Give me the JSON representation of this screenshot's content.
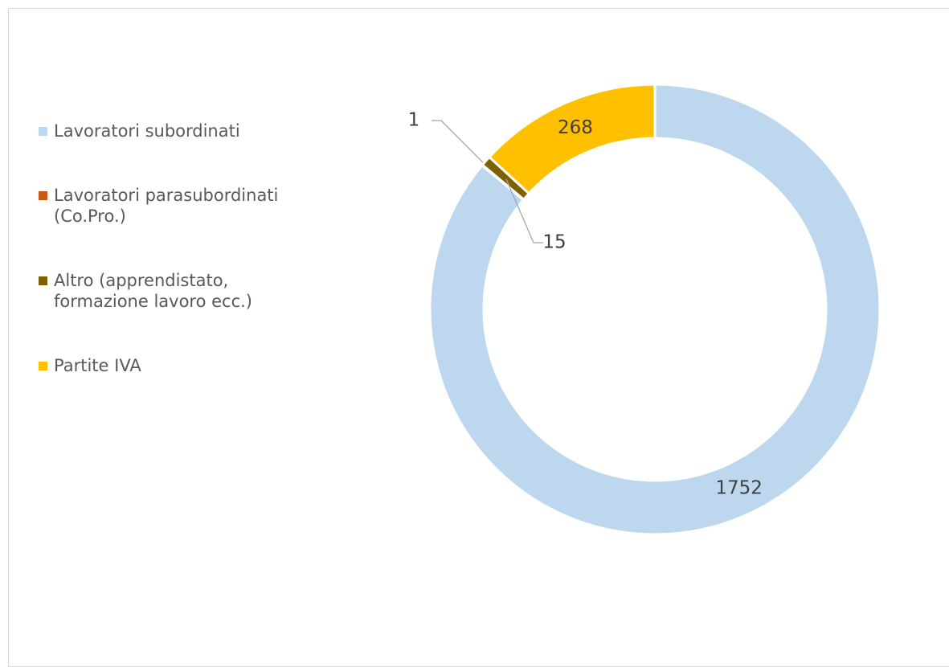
{
  "chart_data": {
    "type": "donut",
    "categories": [
      "Lavoratori subordinati",
      "Lavoratori parasubordinati (Co.Pro.)",
      "Altro (apprendistato, formazione lavoro ecc.)",
      "Partite IVA"
    ],
    "values": [
      1752,
      1,
      15,
      268
    ],
    "colors": [
      "#bdd7ee",
      "#c55a11",
      "#7f6000",
      "#ffc000"
    ],
    "legend": "left"
  }
}
